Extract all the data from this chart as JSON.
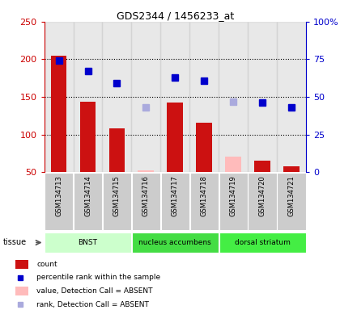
{
  "title": "GDS2344 / 1456233_at",
  "samples": [
    "GSM134713",
    "GSM134714",
    "GSM134715",
    "GSM134716",
    "GSM134717",
    "GSM134718",
    "GSM134719",
    "GSM134720",
    "GSM134721"
  ],
  "count_values": [
    205,
    144,
    108,
    null,
    143,
    116,
    null,
    65,
    58
  ],
  "count_absent": [
    null,
    null,
    null,
    52,
    null,
    null,
    70,
    null,
    null
  ],
  "rank_values": [
    74,
    67,
    59,
    null,
    63,
    61,
    null,
    46,
    43
  ],
  "rank_absent": [
    null,
    null,
    null,
    43,
    null,
    null,
    47,
    null,
    null
  ],
  "left_ylim": [
    50,
    250
  ],
  "right_ylim": [
    0,
    100
  ],
  "left_yticks": [
    50,
    100,
    150,
    200,
    250
  ],
  "right_yticks": [
    0,
    25,
    50,
    75,
    100
  ],
  "right_yticklabels": [
    "0",
    "25",
    "50",
    "75",
    "100%"
  ],
  "tissue_groups": [
    {
      "label": "BNST",
      "start": 0,
      "end": 3,
      "color": "#ccffcc"
    },
    {
      "label": "nucleus accumbens",
      "start": 3,
      "end": 6,
      "color": "#44dd44"
    },
    {
      "label": "dorsal striatum",
      "start": 6,
      "end": 9,
      "color": "#44ee44"
    }
  ],
  "bar_color": "#cc1111",
  "bar_absent_color": "#ffbbbb",
  "dot_color": "#0000cc",
  "dot_absent_color": "#aaaadd",
  "bg_color": "#ffffff",
  "grid_color": "#000000",
  "left_axis_color": "#cc0000",
  "right_axis_color": "#0000cc",
  "sample_bg_color": "#cccccc",
  "tissue_label": "tissue"
}
